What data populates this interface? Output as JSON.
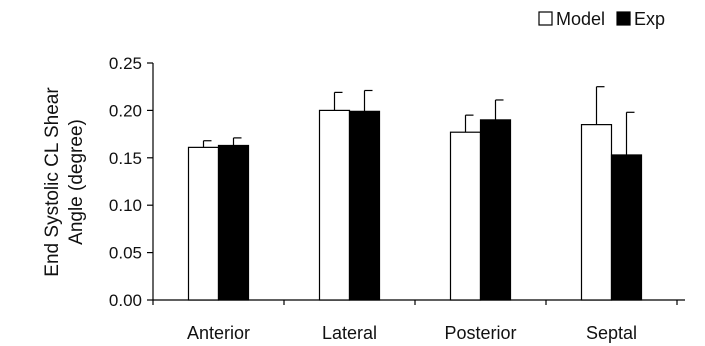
{
  "chart_data": {
    "type": "bar",
    "title": "",
    "xlabel": "",
    "ylabel_lines": [
      "End Systolic CL Shear",
      "Angle (degree)"
    ],
    "categories": [
      "Anterior",
      "Lateral",
      "Posterior",
      "Septal"
    ],
    "series": [
      {
        "name": "Model",
        "fill": "#ffffff",
        "stroke": "#000000",
        "values": [
          0.161,
          0.2,
          0.177,
          0.185
        ],
        "errors": [
          0.007,
          0.019,
          0.018,
          0.04
        ]
      },
      {
        "name": "Exp",
        "fill": "#000000",
        "stroke": "#000000",
        "values": [
          0.163,
          0.199,
          0.19,
          0.153
        ],
        "errors": [
          0.008,
          0.022,
          0.021,
          0.045
        ]
      }
    ],
    "ylim": [
      0,
      0.25
    ],
    "yticks": [
      "0.00",
      "0.05",
      "0.10",
      "0.15",
      "0.20",
      "0.25"
    ],
    "legend_position": "top-right",
    "grid": false
  }
}
